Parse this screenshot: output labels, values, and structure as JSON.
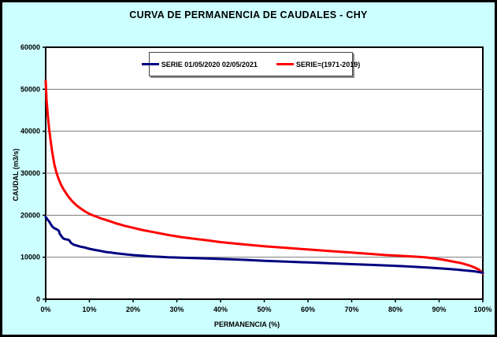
{
  "window": {
    "background_color": "#CCFFFF",
    "border_color": "#000000",
    "plot_background_color": "#FFFFFF",
    "grid_color": "#787878"
  },
  "chart_data": {
    "type": "line",
    "title": "CURVA DE PERMANENCIA DE CAUDALES - CHY",
    "xlabel": "PERMANENCIA (%)",
    "ylabel": "CAUDAL (m3/s)",
    "xlim": [
      0,
      100
    ],
    "ylim": [
      0,
      60000
    ],
    "grid": "horizontal",
    "legend_position": "top-center",
    "x_ticks": [
      {
        "value": 0,
        "label": "0%"
      },
      {
        "value": 10,
        "label": "10%"
      },
      {
        "value": 20,
        "label": "20%"
      },
      {
        "value": 30,
        "label": "30%"
      },
      {
        "value": 40,
        "label": "40%"
      },
      {
        "value": 50,
        "label": "50%"
      },
      {
        "value": 60,
        "label": "60%"
      },
      {
        "value": 70,
        "label": "70%"
      },
      {
        "value": 80,
        "label": "80%"
      },
      {
        "value": 90,
        "label": "90%"
      },
      {
        "value": 100,
        "label": "100%"
      }
    ],
    "y_ticks": [
      {
        "value": 0,
        "label": "0"
      },
      {
        "value": 10000,
        "label": "10000"
      },
      {
        "value": 20000,
        "label": "20000"
      },
      {
        "value": 30000,
        "label": "30000"
      },
      {
        "value": 40000,
        "label": "40000"
      },
      {
        "value": 50000,
        "label": "50000"
      },
      {
        "value": 60000,
        "label": "60000"
      }
    ],
    "series": [
      {
        "name": "SERIE=(1971-2019)",
        "color": "#FF0000",
        "width": 3,
        "points": [
          [
            0,
            52000
          ],
          [
            0.2,
            47500
          ],
          [
            0.5,
            43500
          ],
          [
            0.8,
            40500
          ],
          [
            1.1,
            38000
          ],
          [
            1.5,
            35000
          ],
          [
            2,
            32000
          ],
          [
            2.5,
            30000
          ],
          [
            3,
            28500
          ],
          [
            3.5,
            27300
          ],
          [
            4,
            26300
          ],
          [
            5,
            24700
          ],
          [
            6,
            23400
          ],
          [
            7,
            22400
          ],
          [
            8,
            21600
          ],
          [
            9,
            20900
          ],
          [
            10,
            20300
          ],
          [
            11,
            19900
          ],
          [
            12,
            19500
          ],
          [
            13,
            19100
          ],
          [
            14,
            18800
          ],
          [
            16,
            18100
          ],
          [
            18,
            17500
          ],
          [
            20,
            17000
          ],
          [
            22,
            16500
          ],
          [
            25,
            15900
          ],
          [
            28,
            15300
          ],
          [
            31,
            14800
          ],
          [
            34,
            14400
          ],
          [
            37,
            14000
          ],
          [
            40,
            13600
          ],
          [
            43,
            13300
          ],
          [
            46,
            13000
          ],
          [
            50,
            12600
          ],
          [
            54,
            12300
          ],
          [
            58,
            12000
          ],
          [
            62,
            11700
          ],
          [
            66,
            11400
          ],
          [
            70,
            11100
          ],
          [
            74,
            10800
          ],
          [
            78,
            10500
          ],
          [
            82,
            10300
          ],
          [
            85,
            10100
          ],
          [
            87,
            9950
          ],
          [
            89,
            9700
          ],
          [
            91,
            9400
          ],
          [
            93,
            9000
          ],
          [
            95,
            8600
          ],
          [
            97,
            8000
          ],
          [
            98,
            7600
          ],
          [
            99,
            7100
          ],
          [
            99.5,
            6700
          ],
          [
            100,
            6100
          ]
        ]
      },
      {
        "name": "SERIE 01/05/2020 02/05/2021",
        "color": "#000080",
        "width": 3,
        "points": [
          [
            0,
            19600
          ],
          [
            0.4,
            19000
          ],
          [
            0.8,
            18500
          ],
          [
            1.2,
            17800
          ],
          [
            1.6,
            17200
          ],
          [
            2,
            16900
          ],
          [
            2.6,
            16600
          ],
          [
            3,
            16300
          ],
          [
            3.2,
            15600
          ],
          [
            3.6,
            15000
          ],
          [
            4,
            14500
          ],
          [
            4.4,
            14300
          ],
          [
            5,
            14200
          ],
          [
            5.4,
            14000
          ],
          [
            5.8,
            13400
          ],
          [
            6.4,
            13000
          ],
          [
            7,
            12800
          ],
          [
            8,
            12500
          ],
          [
            9,
            12300
          ],
          [
            10,
            12000
          ],
          [
            11,
            11800
          ],
          [
            12,
            11600
          ],
          [
            13,
            11400
          ],
          [
            14,
            11200
          ],
          [
            15,
            11100
          ],
          [
            16,
            10950
          ],
          [
            18,
            10700
          ],
          [
            20,
            10500
          ],
          [
            22,
            10350
          ],
          [
            24,
            10200
          ],
          [
            26,
            10100
          ],
          [
            28,
            10000
          ],
          [
            31,
            9900
          ],
          [
            34,
            9800
          ],
          [
            38,
            9650
          ],
          [
            42,
            9500
          ],
          [
            46,
            9350
          ],
          [
            50,
            9150
          ],
          [
            55,
            8950
          ],
          [
            60,
            8750
          ],
          [
            65,
            8550
          ],
          [
            70,
            8350
          ],
          [
            75,
            8150
          ],
          [
            80,
            7950
          ],
          [
            84,
            7750
          ],
          [
            88,
            7500
          ],
          [
            91,
            7300
          ],
          [
            94,
            7050
          ],
          [
            96,
            6850
          ],
          [
            98,
            6650
          ],
          [
            100,
            6300
          ]
        ]
      }
    ],
    "legend_order": [
      1,
      0
    ]
  }
}
